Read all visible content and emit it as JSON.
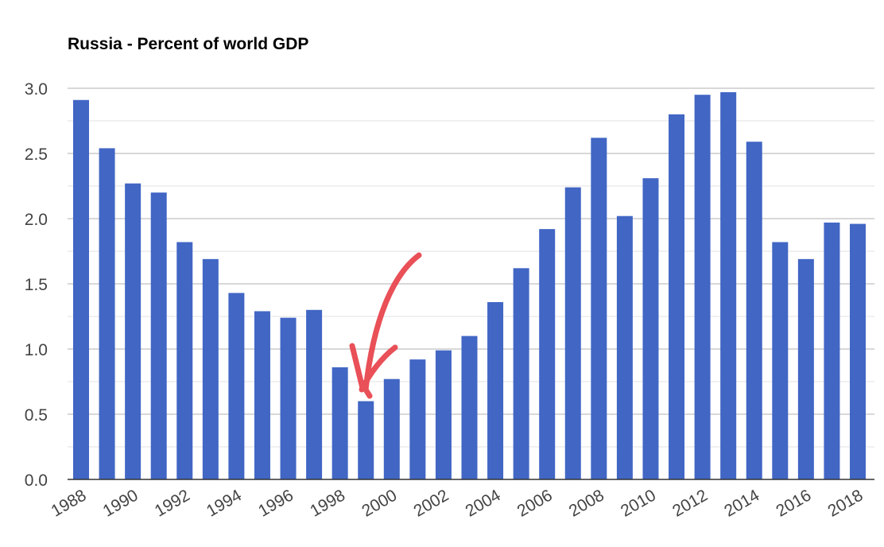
{
  "chart_data": {
    "type": "bar",
    "title": "Russia - Percent of world GDP",
    "xlabel": "",
    "ylabel": "",
    "ylim": [
      0,
      3.0
    ],
    "yticks": [
      "0.0",
      "0.5",
      "1.0",
      "1.5",
      "2.0",
      "2.5",
      "3.0"
    ],
    "ytick_values": [
      0,
      0.5,
      1.0,
      1.5,
      2.0,
      2.5,
      3.0
    ],
    "grid": true,
    "categories": [
      "1988",
      "1989",
      "1990",
      "1991",
      "1992",
      "1993",
      "1994",
      "1995",
      "1996",
      "1997",
      "1998",
      "1999",
      "2000",
      "2001",
      "2002",
      "2003",
      "2004",
      "2005",
      "2006",
      "2007",
      "2008",
      "2009",
      "2010",
      "2011",
      "2012",
      "2013",
      "2014",
      "2015",
      "2016",
      "2017",
      "2018"
    ],
    "xtick_labels": [
      "1988",
      "1990",
      "1992",
      "1994",
      "1996",
      "1998",
      "2000",
      "2002",
      "2004",
      "2006",
      "2008",
      "2010",
      "2012",
      "2014",
      "2016",
      "2018"
    ],
    "values": [
      2.91,
      2.54,
      2.27,
      2.2,
      1.82,
      1.69,
      1.43,
      1.29,
      1.24,
      1.3,
      0.86,
      0.6,
      0.77,
      0.92,
      0.99,
      1.1,
      1.36,
      1.62,
      1.92,
      2.24,
      2.62,
      2.02,
      2.31,
      2.8,
      2.95,
      2.97,
      2.59,
      1.82,
      1.69,
      1.97,
      1.96
    ],
    "bar_color": "#4166c4",
    "annotation": {
      "type": "hand-drawn arrow",
      "points_to": "1999",
      "color": "#e8474f"
    }
  }
}
